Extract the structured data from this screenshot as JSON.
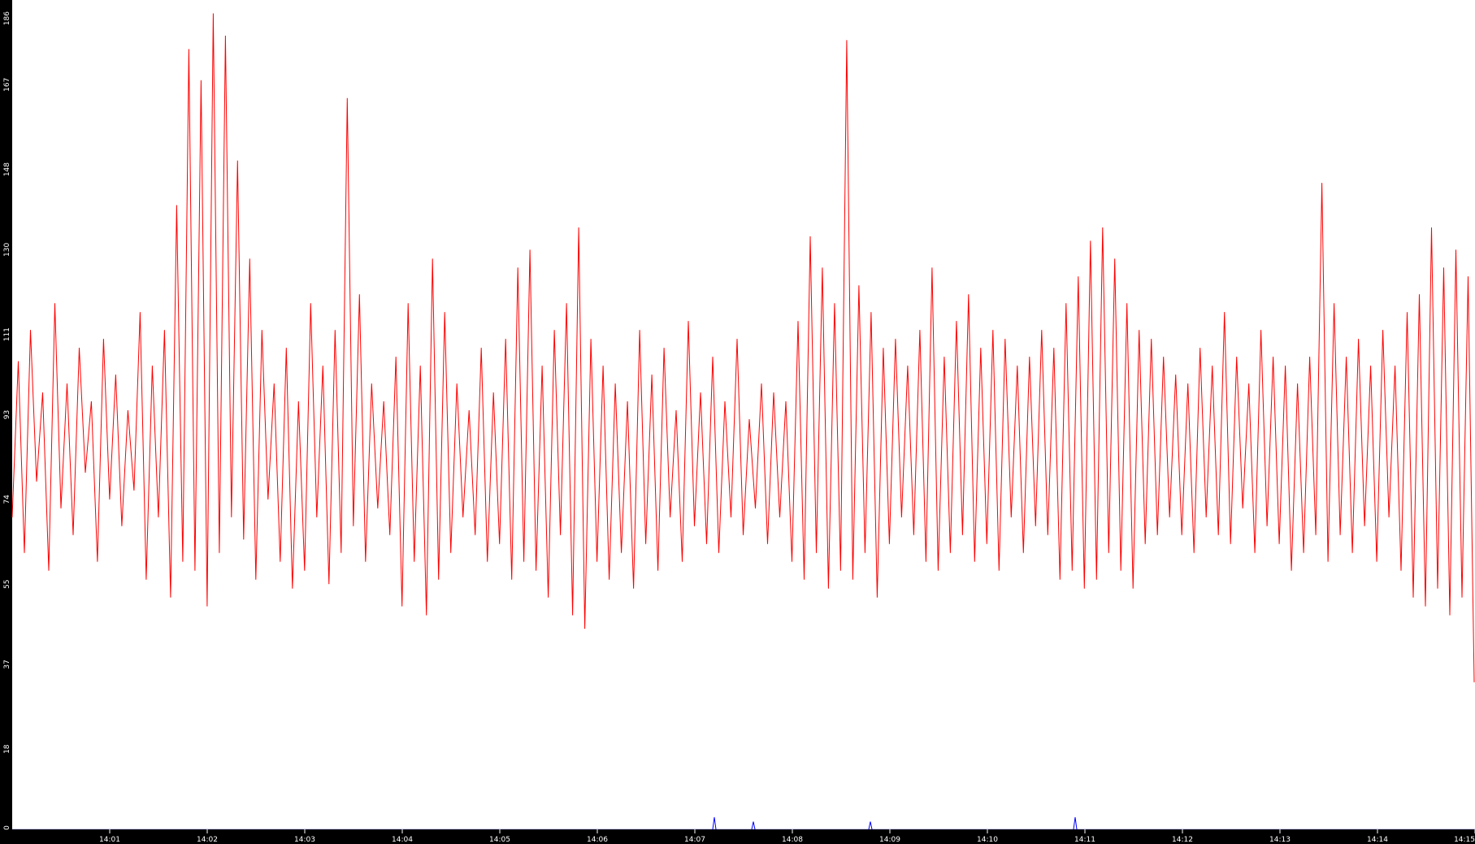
{
  "chart_data": {
    "type": "line",
    "title": "",
    "xlabel": "",
    "ylabel": "",
    "x_range": [
      "14:00",
      "14:15"
    ],
    "ylim": [
      0,
      186
    ],
    "y_ticks": [
      "0",
      "18",
      "37",
      "55",
      "74",
      "93",
      "111",
      "130",
      "148",
      "167",
      "186"
    ],
    "x_ticks": [
      "14:01",
      "14:02",
      "14:03",
      "14:04",
      "14:05",
      "14:06",
      "14:07",
      "14:08",
      "14:09",
      "14:10",
      "14:11",
      "14:12",
      "14:13",
      "14:14",
      "14:15"
    ],
    "grid": false,
    "background": "#ffffff",
    "axis_color": "#000000",
    "series": [
      {
        "color": "#ff0000",
        "values": [
          70,
          105,
          62,
          112,
          78,
          98,
          58,
          118,
          72,
          100,
          66,
          108,
          80,
          96,
          60,
          110,
          74,
          102,
          68,
          94,
          76,
          116,
          56,
          104,
          70,
          112,
          52,
          140,
          60,
          175,
          58,
          168,
          50,
          183,
          62,
          178,
          70,
          150,
          65,
          128,
          56,
          112,
          74,
          100,
          60,
          108,
          54,
          96,
          58,
          118,
          70,
          104,
          55,
          112,
          62,
          164,
          68,
          120,
          60,
          100,
          72,
          96,
          66,
          106,
          50,
          118,
          60,
          104,
          48,
          128,
          56,
          116,
          62,
          100,
          70,
          94,
          66,
          108,
          60,
          98,
          64,
          110,
          56,
          126,
          60,
          130,
          58,
          104,
          52,
          112,
          66,
          118,
          48,
          135,
          45,
          110,
          60,
          104,
          56,
          100,
          62,
          96,
          54,
          112,
          64,
          102,
          58,
          108,
          70,
          94,
          60,
          114,
          68,
          98,
          64,
          106,
          62,
          96,
          70,
          110,
          66,
          92,
          72,
          100,
          64,
          98,
          70,
          96,
          60,
          114,
          56,
          133,
          62,
          126,
          54,
          118,
          58,
          177,
          56,
          122,
          62,
          116,
          52,
          108,
          64,
          110,
          70,
          104,
          66,
          112,
          60,
          126,
          58,
          106,
          62,
          114,
          66,
          120,
          60,
          108,
          64,
          112,
          58,
          110,
          70,
          104,
          62,
          106,
          68,
          112,
          66,
          108,
          56,
          118,
          58,
          124,
          54,
          132,
          56,
          135,
          62,
          128,
          58,
          118,
          54,
          112,
          64,
          110,
          66,
          106,
          70,
          102,
          66,
          100,
          62,
          108,
          70,
          104,
          66,
          116,
          64,
          106,
          72,
          100,
          62,
          112,
          68,
          106,
          64,
          104,
          58,
          100,
          62,
          106,
          66,
          145,
          60,
          118,
          66,
          106,
          62,
          110,
          68,
          104,
          60,
          112,
          70,
          104,
          58,
          116,
          52,
          120,
          50,
          135,
          54,
          126,
          48,
          130,
          52,
          124,
          33
        ]
      },
      {
        "color": "#0000ff",
        "points": [
          [
            "14:00",
            "0"
          ],
          [
            "14:07:12",
            "2"
          ],
          [
            "14:07:36",
            "1"
          ],
          [
            "14:08:48",
            "1"
          ],
          [
            "14:10:54",
            "2"
          ],
          [
            "14:15",
            "0"
          ]
        ]
      }
    ]
  }
}
